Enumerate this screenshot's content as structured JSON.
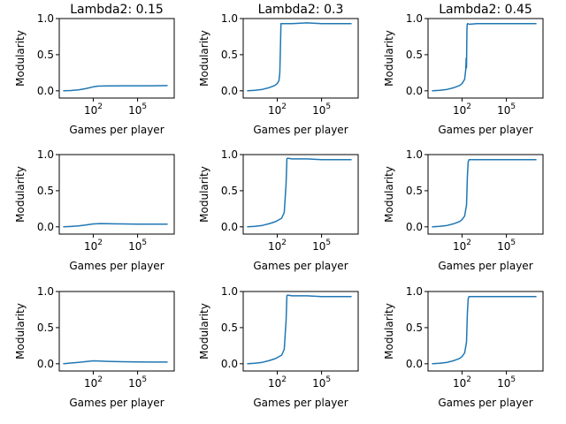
{
  "figure": {
    "background": "#ffffff",
    "line_color": "#1f77b4"
  },
  "chart_data": [
    {
      "type": "line",
      "title": "Lambda2: 0.15",
      "xlabel": "Games per player",
      "ylabel": "Modularity",
      "xscale": "log",
      "xlim": [
        0.5,
        30000000
      ],
      "ylim": [
        -0.1,
        1.0
      ],
      "xticks": [
        "10^2",
        "10^5"
      ],
      "yticks": [
        "0.0",
        "0.5",
        "1.0"
      ],
      "series": [
        {
          "x": [
            1,
            3,
            10,
            30,
            100,
            200,
            1000,
            10000,
            100000,
            1000000,
            10000000
          ],
          "y": [
            0.0,
            0.004,
            0.012,
            0.03,
            0.055,
            0.065,
            0.068,
            0.07,
            0.07,
            0.07,
            0.072
          ]
        }
      ]
    },
    {
      "type": "line",
      "title": "Lambda2: 0.3",
      "xlabel": "Games per player",
      "ylabel": "Modularity",
      "xscale": "log",
      "xlim": [
        0.5,
        30000000
      ],
      "ylim": [
        -0.1,
        1.0
      ],
      "xticks": [
        "10^2",
        "10^5"
      ],
      "yticks": [
        "0.0",
        "0.5",
        "1.0"
      ],
      "series": [
        {
          "x": [
            1,
            3,
            10,
            30,
            70,
            100,
            130,
            150,
            170,
            180,
            200,
            1000,
            10000,
            100000,
            1000000,
            10000000
          ],
          "y": [
            0.0,
            0.008,
            0.02,
            0.045,
            0.075,
            0.1,
            0.14,
            0.25,
            0.7,
            0.93,
            0.93,
            0.93,
            0.94,
            0.93,
            0.93,
            0.93
          ]
        }
      ]
    },
    {
      "type": "line",
      "title": "Lambda2: 0.45",
      "xlabel": "Games per player",
      "ylabel": "Modularity",
      "xscale": "log",
      "xlim": [
        0.5,
        30000000
      ],
      "ylim": [
        -0.1,
        1.0
      ],
      "xticks": [
        "10^2",
        "10^5"
      ],
      "yticks": [
        "0.0",
        "0.5",
        "1.0"
      ],
      "series": [
        {
          "x": [
            1,
            3,
            10,
            30,
            70,
            100,
            150,
            180,
            190,
            200,
            215,
            225,
            240,
            300,
            1000,
            10000,
            100000,
            1000000,
            10000000
          ],
          "y": [
            0.0,
            0.008,
            0.02,
            0.045,
            0.075,
            0.1,
            0.16,
            0.3,
            0.45,
            0.32,
            0.85,
            0.92,
            0.93,
            0.92,
            0.93,
            0.93,
            0.93,
            0.93,
            0.93
          ]
        }
      ]
    },
    {
      "type": "line",
      "title": "",
      "xlabel": "Games per player",
      "ylabel": "Modularity",
      "xscale": "log",
      "xlim": [
        0.5,
        30000000
      ],
      "ylim": [
        -0.1,
        1.0
      ],
      "xticks": [
        "10^2",
        "10^5"
      ],
      "yticks": [
        "0.0",
        "0.5",
        "1.0"
      ],
      "series": [
        {
          "x": [
            1,
            3,
            10,
            30,
            100,
            300,
            1000,
            10000,
            100000,
            1000000,
            10000000
          ],
          "y": [
            0.0,
            0.005,
            0.012,
            0.025,
            0.04,
            0.045,
            0.043,
            0.04,
            0.038,
            0.037,
            0.037
          ]
        }
      ]
    },
    {
      "type": "line",
      "title": "",
      "xlabel": "Games per player",
      "ylabel": "Modularity",
      "xscale": "log",
      "xlim": [
        0.5,
        30000000
      ],
      "ylim": [
        -0.1,
        1.0
      ],
      "xticks": [
        "10^2",
        "10^5"
      ],
      "yticks": [
        "0.0",
        "0.5",
        "1.0"
      ],
      "series": [
        {
          "x": [
            1,
            3,
            10,
            30,
            70,
            100,
            200,
            300,
            400,
            450,
            500,
            1000,
            10000,
            100000,
            1000000,
            10000000
          ],
          "y": [
            0.0,
            0.008,
            0.02,
            0.045,
            0.07,
            0.085,
            0.12,
            0.2,
            0.6,
            0.94,
            0.95,
            0.94,
            0.94,
            0.93,
            0.93,
            0.93
          ]
        }
      ]
    },
    {
      "type": "line",
      "title": "",
      "xlabel": "Games per player",
      "ylabel": "Modularity",
      "xscale": "log",
      "xlim": [
        0.5,
        30000000
      ],
      "ylim": [
        -0.1,
        1.0
      ],
      "xticks": [
        "10^2",
        "10^5"
      ],
      "yticks": [
        "0.0",
        "0.5",
        "1.0"
      ],
      "series": [
        {
          "x": [
            1,
            3,
            10,
            30,
            70,
            100,
            150,
            200,
            230,
            260,
            300,
            1000,
            10000,
            100000,
            1000000,
            10000000
          ],
          "y": [
            0.0,
            0.008,
            0.02,
            0.045,
            0.075,
            0.1,
            0.15,
            0.3,
            0.7,
            0.9,
            0.93,
            0.93,
            0.93,
            0.93,
            0.93,
            0.93
          ]
        }
      ]
    },
    {
      "type": "line",
      "title": "",
      "xlabel": "Games per player",
      "ylabel": "Modularity",
      "xscale": "log",
      "xlim": [
        0.5,
        30000000
      ],
      "ylim": [
        -0.1,
        1.0
      ],
      "xticks": [
        "10^2",
        "10^5"
      ],
      "yticks": [
        "0.0",
        "0.5",
        "1.0"
      ],
      "series": [
        {
          "x": [
            1,
            3,
            10,
            30,
            100,
            300,
            1000,
            10000,
            100000,
            1000000,
            10000000
          ],
          "y": [
            0.0,
            0.01,
            0.02,
            0.03,
            0.04,
            0.038,
            0.033,
            0.028,
            0.025,
            0.024,
            0.024
          ]
        }
      ]
    },
    {
      "type": "line",
      "title": "",
      "xlabel": "Games per player",
      "ylabel": "Modularity",
      "xscale": "log",
      "xlim": [
        0.5,
        30000000
      ],
      "ylim": [
        -0.1,
        1.0
      ],
      "xticks": [
        "10^2",
        "10^5"
      ],
      "yticks": [
        "0.0",
        "0.5",
        "1.0"
      ],
      "series": [
        {
          "x": [
            1,
            3,
            10,
            30,
            70,
            100,
            200,
            300,
            400,
            450,
            500,
            1000,
            10000,
            100000,
            1000000,
            10000000
          ],
          "y": [
            0.0,
            0.008,
            0.02,
            0.045,
            0.07,
            0.085,
            0.12,
            0.2,
            0.6,
            0.94,
            0.95,
            0.94,
            0.94,
            0.93,
            0.93,
            0.93
          ]
        }
      ]
    },
    {
      "type": "line",
      "title": "",
      "xlabel": "Games per player",
      "ylabel": "Modularity",
      "xscale": "log",
      "xlim": [
        0.5,
        30000000
      ],
      "ylim": [
        -0.1,
        1.0
      ],
      "xticks": [
        "10^2",
        "10^5"
      ],
      "yticks": [
        "0.0",
        "0.5",
        "1.0"
      ],
      "series": [
        {
          "x": [
            1,
            3,
            10,
            30,
            70,
            100,
            150,
            200,
            230,
            260,
            300,
            1000,
            10000,
            100000,
            1000000,
            10000000
          ],
          "y": [
            0.0,
            0.008,
            0.02,
            0.045,
            0.075,
            0.1,
            0.15,
            0.3,
            0.7,
            0.9,
            0.93,
            0.93,
            0.93,
            0.93,
            0.93,
            0.93
          ]
        }
      ]
    }
  ]
}
